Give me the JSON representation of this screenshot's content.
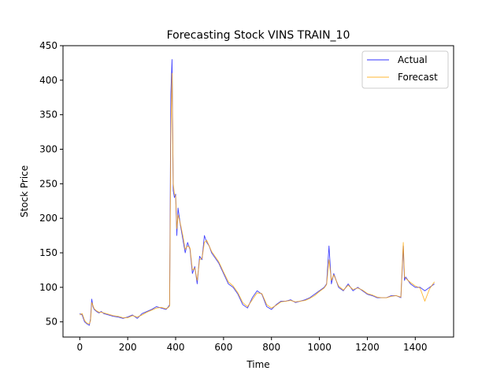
{
  "chart_data": {
    "type": "line",
    "title": "Forecasting Stock VINS TRAIN_10",
    "xlabel": "Time",
    "ylabel": "Stock Price",
    "xlim": [
      -70,
      1560
    ],
    "ylim": [
      28,
      450
    ],
    "xticks": [
      0,
      200,
      400,
      600,
      800,
      1000,
      1200,
      1400
    ],
    "yticks": [
      50,
      100,
      150,
      200,
      250,
      300,
      350,
      400,
      450
    ],
    "grid": false,
    "legend_position": "top-right",
    "series": [
      {
        "name": "Actual",
        "color": "#0000ff",
        "x": [
          0,
          10,
          20,
          30,
          40,
          45,
          50,
          55,
          60,
          70,
          80,
          90,
          100,
          120,
          140,
          160,
          180,
          200,
          220,
          240,
          260,
          280,
          300,
          320,
          340,
          360,
          370,
          375,
          380,
          385,
          390,
          395,
          400,
          405,
          410,
          420,
          430,
          440,
          450,
          460,
          470,
          480,
          490,
          500,
          510,
          520,
          530,
          540,
          550,
          560,
          580,
          600,
          620,
          640,
          660,
          680,
          700,
          720,
          740,
          760,
          780,
          800,
          820,
          840,
          860,
          880,
          900,
          920,
          940,
          960,
          980,
          1000,
          1020,
          1030,
          1040,
          1050,
          1060,
          1080,
          1100,
          1120,
          1140,
          1160,
          1180,
          1200,
          1220,
          1240,
          1260,
          1280,
          1300,
          1320,
          1340,
          1350,
          1355,
          1360,
          1380,
          1400,
          1420,
          1440,
          1460,
          1480
        ],
        "values": [
          62,
          60,
          50,
          47,
          45,
          55,
          83,
          72,
          68,
          65,
          63,
          65,
          62,
          60,
          58,
          57,
          55,
          57,
          60,
          55,
          62,
          65,
          68,
          72,
          70,
          68,
          72,
          75,
          380,
          430,
          240,
          230,
          235,
          175,
          215,
          190,
          170,
          150,
          165,
          155,
          120,
          130,
          105,
          145,
          140,
          175,
          165,
          160,
          150,
          145,
          135,
          120,
          105,
          100,
          90,
          75,
          70,
          85,
          95,
          90,
          72,
          68,
          75,
          80,
          80,
          82,
          78,
          80,
          82,
          85,
          90,
          95,
          100,
          105,
          160,
          105,
          120,
          100,
          95,
          105,
          95,
          100,
          95,
          90,
          88,
          85,
          85,
          85,
          88,
          88,
          85,
          160,
          110,
          115,
          105,
          100,
          100,
          95,
          100,
          105
        ]
      },
      {
        "name": "Forecast",
        "color": "#ffa500",
        "x": [
          0,
          10,
          20,
          30,
          40,
          45,
          50,
          55,
          60,
          70,
          80,
          90,
          100,
          120,
          140,
          160,
          180,
          200,
          220,
          240,
          260,
          280,
          300,
          320,
          340,
          360,
          370,
          375,
          380,
          385,
          390,
          395,
          400,
          405,
          410,
          420,
          430,
          440,
          450,
          460,
          470,
          480,
          490,
          500,
          510,
          520,
          530,
          540,
          550,
          560,
          580,
          600,
          620,
          640,
          660,
          680,
          700,
          720,
          740,
          760,
          780,
          800,
          820,
          840,
          860,
          880,
          900,
          920,
          940,
          960,
          980,
          1000,
          1020,
          1030,
          1040,
          1050,
          1060,
          1080,
          1100,
          1120,
          1140,
          1160,
          1180,
          1200,
          1220,
          1240,
          1260,
          1280,
          1300,
          1320,
          1340,
          1350,
          1355,
          1360,
          1380,
          1400,
          1420,
          1440,
          1460,
          1480
        ],
        "values": [
          60,
          62,
          52,
          48,
          47,
          52,
          78,
          74,
          69,
          66,
          64,
          64,
          63,
          61,
          59,
          58,
          56,
          56,
          59,
          57,
          60,
          64,
          67,
          70,
          71,
          69,
          71,
          73,
          320,
          410,
          250,
          235,
          232,
          185,
          205,
          192,
          175,
          155,
          160,
          157,
          125,
          128,
          110,
          140,
          142,
          165,
          168,
          160,
          152,
          147,
          137,
          122,
          108,
          102,
          92,
          78,
          72,
          82,
          92,
          91,
          75,
          70,
          74,
          79,
          80,
          81,
          79,
          80,
          81,
          84,
          88,
          94,
          99,
          104,
          140,
          110,
          118,
          102,
          96,
          103,
          97,
          99,
          96,
          91,
          89,
          86,
          85,
          85,
          87,
          88,
          86,
          165,
          115,
          113,
          107,
          102,
          99,
          80,
          98,
          108
        ]
      }
    ]
  }
}
